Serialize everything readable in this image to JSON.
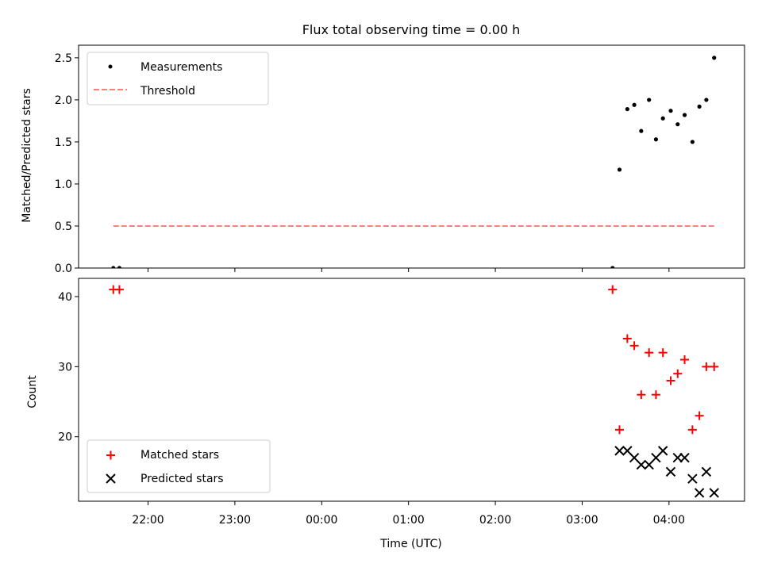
{
  "chart_data": [
    {
      "type": "scatter",
      "title": "Flux total observing time = 0.00 h",
      "xlabel": "",
      "ylabel": "Matched/Predicted stars",
      "x_axis": "time (hours relative to 00:00 UTC)",
      "xlim": [
        -2.8,
        4.87
      ],
      "ylim": [
        0,
        2.65
      ],
      "yticks": [
        "0.0",
        "0.5",
        "1.0",
        "1.5",
        "2.0",
        "2.5"
      ],
      "ytick_values": [
        0,
        0.5,
        1.0,
        1.5,
        2.0,
        2.5
      ],
      "legend": {
        "position": "top-left",
        "entries": [
          "Measurements",
          "Threshold"
        ]
      },
      "series": [
        {
          "name": "Measurements",
          "kind": "points",
          "color": "#000000",
          "x": [
            -2.4,
            -2.33,
            3.35,
            3.43,
            3.52,
            3.6,
            3.68,
            3.77,
            3.85,
            3.93,
            4.02,
            4.1,
            4.18,
            4.27,
            4.35,
            4.43,
            4.52
          ],
          "y": [
            0.0,
            0.0,
            0.0,
            1.17,
            1.89,
            1.94,
            1.63,
            2.0,
            1.53,
            1.78,
            1.87,
            1.71,
            1.82,
            1.5,
            1.92,
            2.0,
            2.5
          ]
        },
        {
          "name": "Threshold",
          "kind": "dashed-line",
          "color": "#ff7f7f",
          "x": [
            -2.4,
            4.52
          ],
          "y": [
            0.5,
            0.5
          ]
        }
      ]
    },
    {
      "type": "scatter",
      "title": "",
      "xlabel": "Time (UTC)",
      "ylabel": "Count",
      "xlim": [
        -2.8,
        4.87
      ],
      "ylim": [
        10.8,
        42.6
      ],
      "yticks": [
        "20",
        "30",
        "40"
      ],
      "ytick_values": [
        20,
        30,
        40
      ],
      "xticks": [
        "22:00",
        "23:00",
        "00:00",
        "01:00",
        "02:00",
        "03:00",
        "04:00"
      ],
      "xtick_values": [
        -2,
        -1,
        0,
        1,
        2,
        3,
        4
      ],
      "legend": {
        "position": "bottom-left",
        "entries": [
          "Matched stars",
          "Predicted stars"
        ]
      },
      "series": [
        {
          "name": "Matched stars",
          "marker": "plus",
          "color": "#ff0000",
          "x": [
            -2.4,
            -2.33,
            3.35,
            3.43,
            3.52,
            3.6,
            3.68,
            3.77,
            3.85,
            3.93,
            4.02,
            4.1,
            4.18,
            4.27,
            4.35,
            4.43,
            4.52
          ],
          "y": [
            41,
            41,
            41,
            21,
            34,
            33,
            26,
            32,
            26,
            32,
            28,
            29,
            31,
            21,
            23,
            30,
            30
          ]
        },
        {
          "name": "Predicted stars",
          "marker": "x",
          "color": "#000000",
          "x": [
            3.43,
            3.52,
            3.6,
            3.68,
            3.77,
            3.85,
            3.93,
            4.02,
            4.1,
            4.18,
            4.27,
            4.35,
            4.43,
            4.52
          ],
          "y": [
            18,
            18,
            17,
            16,
            16,
            17,
            18,
            15,
            17,
            17,
            14,
            12,
            15,
            12
          ]
        }
      ]
    }
  ]
}
